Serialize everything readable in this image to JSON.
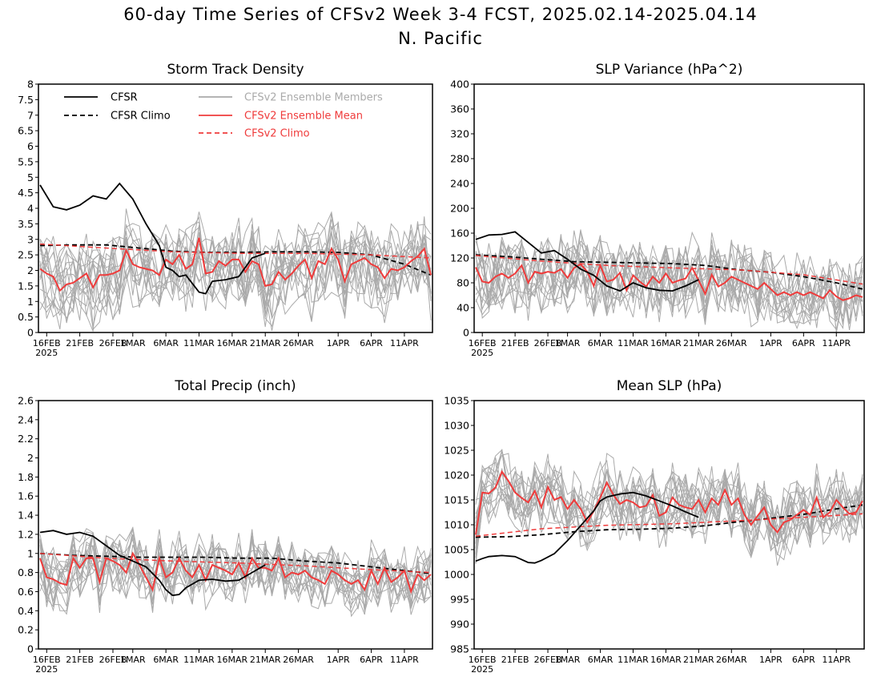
{
  "title": {
    "line1": "60-day Time Series of CFSv2 Week 3-4 FCST, 2025.02.14-2025.04.14",
    "line2": "N. Pacific"
  },
  "legend": {
    "cfsr": "CFSR",
    "cfsr_climo": "CFSR Climo",
    "members": "CFSv2 Ensemble Members",
    "ens_mean": "CFSv2 Ensemble Mean",
    "cfsv2_climo": "CFSv2 Climo"
  },
  "colors": {
    "cfsr": "#000000",
    "ens_mean": "#ef3b3b",
    "members": "#aaaaaa",
    "cfsv2_climo": "#ef3b3b"
  },
  "x_ticks": [
    "16FEB",
    "21FEB",
    "26FEB",
    "1MAR",
    "6MAR",
    "11MAR",
    "16MAR",
    "21MAR",
    "26MAR",
    "1APR",
    "6APR",
    "11APR"
  ],
  "year_label": "2025",
  "chart_data": [
    {
      "type": "line",
      "title": "Storm Track Density",
      "ylim": [
        0,
        8
      ],
      "y_ticks": [
        "0",
        "0.5",
        "1",
        "1.5",
        "2",
        "2.5",
        "3",
        "3.5",
        "4",
        "4.5",
        "5",
        "5.5",
        "6",
        "6.5",
        "7",
        "7.5",
        "8"
      ],
      "has_legend": true,
      "series": [
        {
          "name": "CFSR",
          "x": [
            0,
            2,
            4,
            6,
            8,
            10,
            12,
            14,
            16,
            18,
            19,
            20,
            21,
            22,
            24,
            25,
            26,
            28,
            30,
            32,
            34
          ],
          "y": [
            4.75,
            4.05,
            3.95,
            4.1,
            4.4,
            4.3,
            4.8,
            4.3,
            3.5,
            2.8,
            2.1,
            2.0,
            1.8,
            1.85,
            1.3,
            1.25,
            1.65,
            1.7,
            1.8,
            2.4,
            2.55
          ]
        },
        {
          "name": "CFSR Climo",
          "x": [
            0,
            5,
            10,
            15,
            20,
            25,
            30,
            35,
            40,
            45,
            50,
            55,
            59
          ],
          "y": [
            2.8,
            2.82,
            2.82,
            2.72,
            2.62,
            2.58,
            2.58,
            2.6,
            2.6,
            2.58,
            2.5,
            2.2,
            1.85
          ]
        },
        {
          "name": "CFSv2 Climo",
          "x": [
            0,
            10,
            20,
            30,
            40,
            50,
            59
          ],
          "y": [
            2.85,
            2.72,
            2.6,
            2.55,
            2.55,
            2.5,
            2.4
          ]
        },
        {
          "name": "CFSv2 Ensemble Mean",
          "x": [
            0,
            1,
            2,
            3,
            4,
            5,
            6,
            7,
            8,
            9,
            10,
            11,
            12,
            13,
            14,
            15,
            16,
            17,
            18,
            19,
            20,
            21,
            22,
            23,
            24,
            25,
            26,
            27,
            28,
            29,
            30,
            31,
            32,
            33,
            34,
            35,
            36,
            37,
            38,
            39,
            40,
            41,
            42,
            43,
            44,
            45,
            46,
            47,
            48,
            49,
            50,
            51,
            52,
            53,
            54,
            55,
            56,
            57,
            58,
            59
          ],
          "y": [
            2.05,
            1.9,
            1.8,
            1.35,
            1.55,
            1.6,
            1.75,
            1.9,
            1.45,
            1.85,
            1.85,
            1.9,
            2.0,
            2.65,
            2.2,
            2.1,
            2.05,
            2.0,
            1.85,
            2.35,
            2.2,
            2.5,
            2.05,
            2.2,
            3.05,
            1.9,
            1.95,
            2.3,
            2.15,
            2.35,
            2.35,
            1.95,
            2.3,
            2.2,
            1.5,
            1.55,
            1.95,
            1.7,
            1.9,
            2.15,
            2.35,
            1.75,
            2.3,
            2.2,
            2.7,
            2.35,
            1.65,
            2.2,
            2.3,
            2.4,
            2.2,
            2.1,
            1.75,
            2.05,
            2.0,
            2.1,
            2.3,
            2.45,
            2.7,
            1.85
          ]
        }
      ]
    },
    {
      "type": "line",
      "title": "SLP Variance (hPa^2)",
      "ylim": [
        0,
        400
      ],
      "y_ticks": [
        "0",
        "40",
        "80",
        "120",
        "160",
        "200",
        "240",
        "280",
        "320",
        "360",
        "400"
      ],
      "has_legend": false,
      "series": [
        {
          "name": "CFSR",
          "x": [
            0,
            2,
            4,
            6,
            8,
            10,
            12,
            14,
            16,
            18,
            20,
            22,
            24,
            26,
            28,
            30,
            32,
            34
          ],
          "y": [
            150,
            157,
            158,
            162,
            145,
            128,
            132,
            118,
            102,
            92,
            75,
            67,
            80,
            72,
            68,
            67,
            75,
            85
          ]
        },
        {
          "name": "CFSR Climo",
          "x": [
            0,
            5,
            10,
            15,
            20,
            25,
            30,
            35,
            40,
            45,
            50,
            55,
            59
          ],
          "y": [
            125,
            122,
            118,
            114,
            113,
            112,
            111,
            108,
            101,
            97,
            90,
            80,
            70
          ]
        },
        {
          "name": "CFSv2 Climo",
          "x": [
            0,
            10,
            20,
            30,
            40,
            50,
            59
          ],
          "y": [
            124,
            115,
            108,
            104,
            101,
            93,
            78
          ]
        },
        {
          "name": "CFSv2 Ensemble Mean",
          "x": [
            0,
            1,
            2,
            3,
            4,
            5,
            6,
            7,
            8,
            9,
            10,
            11,
            12,
            13,
            14,
            15,
            16,
            17,
            18,
            19,
            20,
            21,
            22,
            23,
            24,
            25,
            26,
            27,
            28,
            29,
            30,
            31,
            32,
            33,
            34,
            35,
            36,
            37,
            38,
            39,
            40,
            41,
            42,
            43,
            44,
            45,
            46,
            47,
            48,
            49,
            50,
            51,
            52,
            53,
            54,
            55,
            56,
            57,
            58,
            59
          ],
          "y": [
            105,
            82,
            80,
            90,
            95,
            88,
            95,
            108,
            80,
            98,
            95,
            98,
            96,
            102,
            88,
            104,
            110,
            98,
            75,
            108,
            82,
            85,
            96,
            68,
            92,
            82,
            74,
            90,
            80,
            95,
            80,
            84,
            87,
            104,
            84,
            62,
            93,
            74,
            80,
            90,
            85,
            80,
            75,
            70,
            80,
            70,
            60,
            65,
            60,
            65,
            60,
            65,
            60,
            55,
            68,
            58,
            52,
            55,
            60,
            57
          ]
        }
      ]
    },
    {
      "type": "line",
      "title": "Total Precip (inch)",
      "ylim": [
        0,
        2.6
      ],
      "y_ticks": [
        "0",
        "0.2",
        "0.4",
        "0.6",
        "0.8",
        "1",
        "1.2",
        "1.4",
        "1.6",
        "1.8",
        "2",
        "2.2",
        "2.4",
        "2.6"
      ],
      "has_legend": false,
      "series": [
        {
          "name": "CFSR",
          "x": [
            0,
            2,
            4,
            6,
            8,
            10,
            12,
            14,
            16,
            18,
            19,
            20,
            21,
            22,
            24,
            26,
            28,
            30,
            32,
            34
          ],
          "y": [
            1.22,
            1.24,
            1.2,
            1.22,
            1.18,
            1.08,
            0.98,
            0.92,
            0.86,
            0.72,
            0.62,
            0.56,
            0.57,
            0.64,
            0.72,
            0.73,
            0.71,
            0.72,
            0.8,
            0.88
          ]
        },
        {
          "name": "CFSR Climo",
          "x": [
            0,
            5,
            10,
            15,
            20,
            25,
            30,
            35,
            40,
            45,
            50,
            55,
            59
          ],
          "y": [
            1.0,
            0.98,
            0.97,
            0.96,
            0.96,
            0.96,
            0.95,
            0.95,
            0.92,
            0.9,
            0.86,
            0.82,
            0.79
          ]
        },
        {
          "name": "CFSv2 Climo",
          "x": [
            0,
            10,
            20,
            30,
            40,
            50,
            59
          ],
          "y": [
            1.0,
            0.95,
            0.92,
            0.9,
            0.87,
            0.83,
            0.8
          ]
        },
        {
          "name": "CFSv2 Ensemble Mean",
          "x": [
            0,
            1,
            2,
            3,
            4,
            5,
            6,
            7,
            8,
            9,
            10,
            11,
            12,
            13,
            14,
            15,
            16,
            17,
            18,
            19,
            20,
            21,
            22,
            23,
            24,
            25,
            26,
            27,
            28,
            29,
            30,
            31,
            32,
            33,
            34,
            35,
            36,
            37,
            38,
            39,
            40,
            41,
            42,
            43,
            44,
            45,
            46,
            47,
            48,
            49,
            50,
            51,
            52,
            53,
            54,
            55,
            56,
            57,
            58,
            59
          ],
          "y": [
            0.95,
            0.75,
            0.73,
            0.69,
            0.67,
            0.95,
            0.85,
            0.95,
            0.95,
            0.7,
            0.95,
            0.92,
            0.88,
            0.8,
            1.0,
            0.88,
            0.75,
            0.62,
            0.95,
            0.75,
            0.8,
            0.95,
            0.82,
            0.75,
            0.88,
            0.72,
            0.88,
            0.85,
            0.82,
            0.78,
            0.9,
            0.75,
            0.95,
            0.85,
            0.85,
            0.82,
            0.95,
            0.75,
            0.8,
            0.78,
            0.82,
            0.75,
            0.72,
            0.68,
            0.82,
            0.78,
            0.72,
            0.68,
            0.72,
            0.62,
            0.82,
            0.68,
            0.85,
            0.7,
            0.75,
            0.82,
            0.6,
            0.78,
            0.72,
            0.78
          ]
        }
      ]
    },
    {
      "type": "line",
      "title": "Mean SLP (hPa)",
      "ylim": [
        985,
        1035
      ],
      "y_ticks": [
        "985",
        "990",
        "995",
        "1000",
        "1005",
        "1010",
        "1015",
        "1020",
        "1025",
        "1030",
        "1035"
      ],
      "has_legend": false,
      "series": [
        {
          "name": "CFSR",
          "x": [
            0,
            1,
            2,
            4,
            6,
            8,
            9,
            10,
            12,
            14,
            16,
            18,
            19,
            20,
            22,
            24,
            26,
            28,
            30,
            32,
            34
          ],
          "y": [
            1002.7,
            1003.2,
            1003.6,
            1003.8,
            1003.6,
            1002.4,
            1002.3,
            1002.8,
            1004.2,
            1006.8,
            1009.8,
            1012.8,
            1014.8,
            1015.6,
            1016.2,
            1016.5,
            1015.8,
            1014.8,
            1013.8,
            1012.6,
            1011.5
          ]
        },
        {
          "name": "CFSR Climo",
          "x": [
            0,
            5,
            10,
            15,
            20,
            25,
            30,
            35,
            40,
            45,
            50,
            55,
            59
          ],
          "y": [
            1007.5,
            1007.6,
            1008.0,
            1008.6,
            1009.0,
            1009.1,
            1009.3,
            1009.8,
            1010.6,
            1011.3,
            1012.1,
            1013.2,
            1014.0
          ]
        },
        {
          "name": "CFSv2 Climo",
          "x": [
            0,
            10,
            20,
            30,
            40,
            50,
            59
          ],
          "y": [
            1007.7,
            1009.2,
            1009.9,
            1010.2,
            1010.8,
            1011.5,
            1012.2
          ]
        },
        {
          "name": "CFSv2 Ensemble Mean",
          "x": [
            0,
            1,
            2,
            3,
            4,
            5,
            6,
            7,
            8,
            9,
            10,
            11,
            12,
            13,
            14,
            15,
            16,
            17,
            18,
            19,
            20,
            21,
            22,
            23,
            24,
            25,
            26,
            27,
            28,
            29,
            30,
            31,
            32,
            33,
            34,
            35,
            36,
            37,
            38,
            39,
            40,
            41,
            42,
            43,
            44,
            45,
            46,
            47,
            48,
            49,
            50,
            51,
            52,
            53,
            54,
            55,
            56,
            57,
            58,
            59
          ],
          "y": [
            1008.0,
            1016.5,
            1016.3,
            1017.5,
            1020.7,
            1018.8,
            1016.5,
            1015.4,
            1014.5,
            1016.8,
            1013.5,
            1017.6,
            1015.0,
            1015.6,
            1013.2,
            1015.0,
            1013.2,
            1010.5,
            1012.8,
            1015.5,
            1018.5,
            1016.0,
            1014.2,
            1015.0,
            1014.5,
            1013.5,
            1013.8,
            1016.0,
            1011.8,
            1012.5,
            1015.5,
            1014.0,
            1013.5,
            1013.2,
            1015.0,
            1012.5,
            1015.3,
            1014.0,
            1017.0,
            1014.0,
            1015.3,
            1012.0,
            1010.0,
            1011.8,
            1013.5,
            1010.0,
            1008.5,
            1010.5,
            1011.0,
            1012.0,
            1013.0,
            1012.0,
            1015.5,
            1011.5,
            1012.5,
            1015.0,
            1013.5,
            1012.2,
            1012.5,
            1014.8
          ]
        }
      ]
    }
  ]
}
